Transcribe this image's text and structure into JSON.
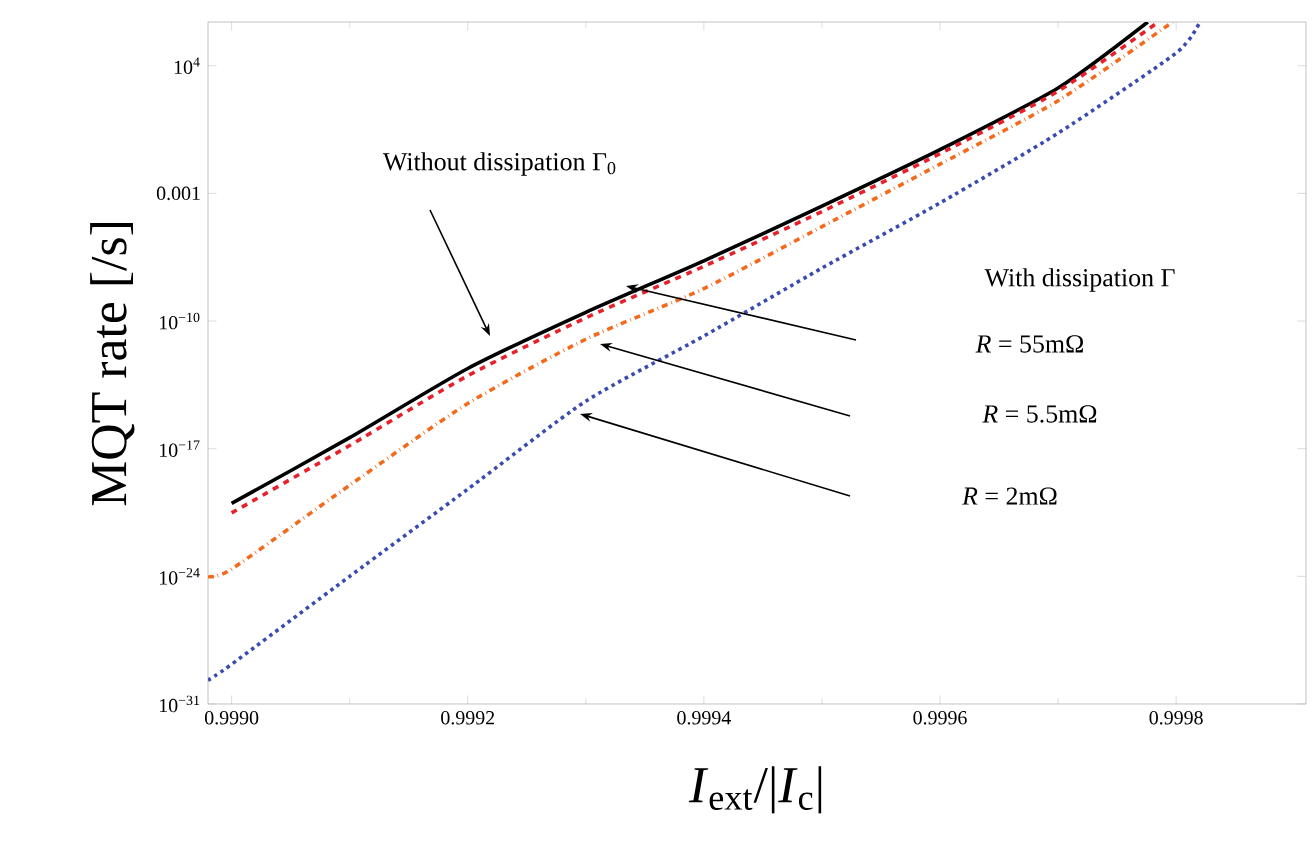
{
  "chart_data": {
    "type": "line",
    "xlabel": "*I*$_{ext}$/|*I*$_{c}$|",
    "ylabel": "MQT rate [/s]",
    "log": "y",
    "grid": false,
    "xlim": [
      0.99898,
      0.99991
    ],
    "ylim": [
      1e-31,
      2500000.0
    ],
    "xticks": [
      {
        "value": 0.999,
        "label": "0.9990"
      },
      {
        "value": 0.9992,
        "label": "0.9992"
      },
      {
        "value": 0.9994,
        "label": "0.9994"
      },
      {
        "value": 0.9996,
        "label": "0.9996"
      },
      {
        "value": 0.9998,
        "label": "0.9998"
      }
    ],
    "yticks": [
      {
        "value": 1e-31,
        "label": "10$^{−31}$"
      },
      {
        "value": 1e-24,
        "label": "10$^{−24}$"
      },
      {
        "value": 1e-17,
        "label": "10$^{−17}$"
      },
      {
        "value": 1e-10,
        "label": "10$^{−10}$"
      },
      0.001,
      {
        "value": 10000.0,
        "label": "10$^{4}$"
      }
    ],
    "series": [
      {
        "color": "#000000",
        "line_style": "solid",
        "x": [
          0.999,
          0.9991,
          0.9992,
          0.9993,
          0.9994,
          0.9995,
          0.9996,
          0.9997,
          0.999776
        ],
        "values": [
          1e-20,
          4e-17,
          2.5e-13,
          3e-10,
          2e-07,
          0.0002,
          0.25,
          600,
          2500000.0
        ]
      },
      {
        "color": "#e8202a",
        "line_style": "dashed",
        "x": [
          0.999,
          0.9991,
          0.9992,
          0.9993,
          0.9994,
          0.9995,
          0.9996,
          0.9997,
          0.999785
        ],
        "values": [
          3e-21,
          1.5e-17,
          1e-13,
          1.5e-10,
          1e-07,
          0.0001,
          0.15,
          400,
          2500000.0
        ]
      },
      {
        "color": "#f26b1d",
        "line_style": "dashdot",
        "x": [
          0.99898,
          0.999,
          0.9991,
          0.9992,
          0.9993,
          0.9994,
          0.9995,
          0.9996,
          0.9997,
          0.999797
        ],
        "values": [
          1e-24,
          2.5e-24,
          1e-19,
          3e-15,
          1e-11,
          6e-09,
          1.5e-05,
          0.04,
          120,
          2500000.0
        ]
      },
      {
        "color": "#3a4bb0",
        "line_style": "dotted",
        "x": [
          0.99898,
          0.999,
          0.9991,
          0.9992,
          0.9993,
          0.9994,
          0.9995,
          0.9996,
          0.9997,
          0.9998,
          0.99982
        ],
        "values": [
          2e-30,
          1.5e-29,
          1e-24,
          6e-20,
          4e-15,
          1.5e-11,
          8e-08,
          0.0003,
          2,
          50000.0,
          2500000.0
        ]
      }
    ],
    "annotations": [
      "Without dissipation Γ$_{0}$",
      "With dissipation Γ",
      "*R* = 55mΩ",
      "*R* = 5.5mΩ",
      "*R* = 2mΩ"
    ]
  }
}
